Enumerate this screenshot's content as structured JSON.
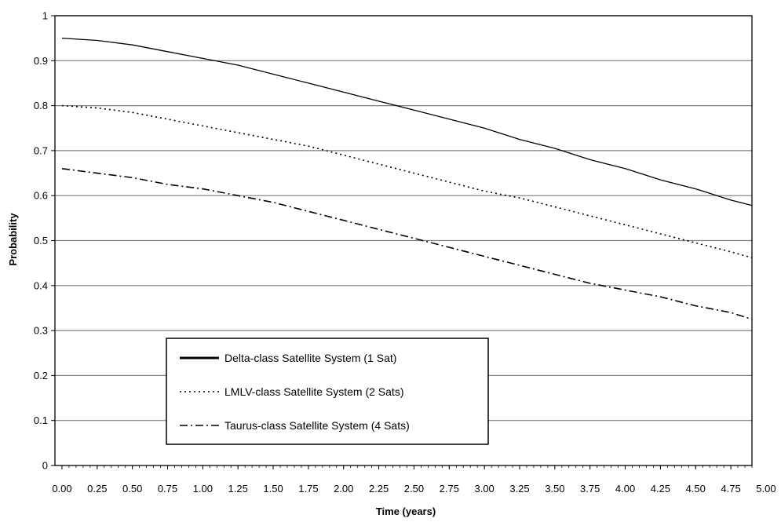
{
  "chart_data": {
    "type": "line",
    "title": "",
    "xlabel": "Time (years)",
    "ylabel": "Probability",
    "x": [
      0.0,
      0.25,
      0.5,
      0.75,
      1.0,
      1.25,
      1.5,
      1.75,
      2.0,
      2.25,
      2.5,
      2.75,
      3.0,
      3.25,
      3.5,
      3.75,
      4.0,
      4.25,
      4.5,
      4.75,
      4.9
    ],
    "xlim": [
      -0.05,
      4.9
    ],
    "ylim": [
      0,
      1
    ],
    "x_tick_labels": [
      "0.00",
      "0.25",
      "0.50",
      "0.75",
      "1.00",
      "1.25",
      "1.50",
      "1.75",
      "2.00",
      "2.25",
      "2.50",
      "2.75",
      "3.00",
      "3.25",
      "3.50",
      "3.75",
      "4.00",
      "4.25",
      "4.50",
      "4.75",
      "5.00"
    ],
    "y_ticks": [
      0,
      0.1,
      0.2,
      0.3,
      0.4,
      0.5,
      0.6,
      0.7,
      0.8,
      0.9,
      1
    ],
    "y_tick_labels": [
      "0",
      "0.1",
      "0.2",
      "0.3",
      "0.4",
      "0.5",
      "0.6",
      "0.7",
      "0.8",
      "0.9",
      "1"
    ],
    "grid": "horizontal",
    "legend_position": "bottom-left",
    "series": [
      {
        "name": "Delta-class Satellite System (1 Sat)",
        "style": "solid",
        "color": "#000000",
        "values": [
          0.95,
          0.945,
          0.935,
          0.92,
          0.905,
          0.89,
          0.87,
          0.85,
          0.83,
          0.81,
          0.79,
          0.77,
          0.75,
          0.725,
          0.705,
          0.68,
          0.66,
          0.635,
          0.615,
          0.59,
          0.578
        ]
      },
      {
        "name": "LMLV-class Satellite System (2 Sats)",
        "style": "dotted",
        "color": "#000000",
        "values": [
          0.8,
          0.795,
          0.785,
          0.77,
          0.755,
          0.74,
          0.725,
          0.71,
          0.69,
          0.67,
          0.65,
          0.63,
          0.61,
          0.595,
          0.575,
          0.555,
          0.535,
          0.515,
          0.495,
          0.475,
          0.462
        ]
      },
      {
        "name": "Taurus-class Satellite System (4 Sats)",
        "style": "dash-dot",
        "color": "#000000",
        "values": [
          0.66,
          0.65,
          0.64,
          0.625,
          0.615,
          0.6,
          0.585,
          0.565,
          0.545,
          0.525,
          0.505,
          0.485,
          0.465,
          0.445,
          0.425,
          0.405,
          0.39,
          0.375,
          0.355,
          0.34,
          0.325
        ]
      }
    ]
  }
}
